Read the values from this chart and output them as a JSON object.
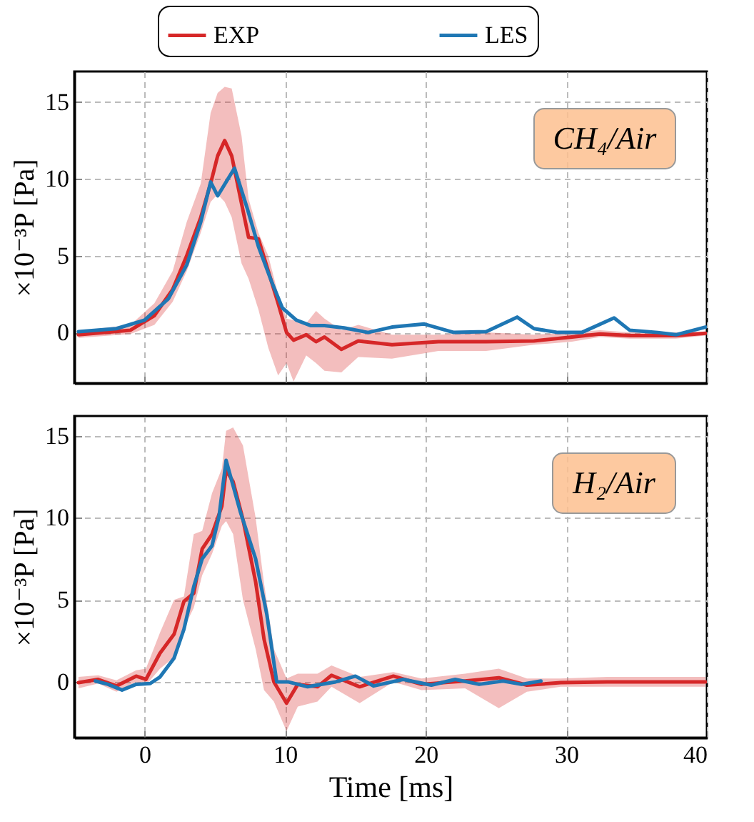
{
  "chart_data": [
    {
      "type": "line",
      "ylabel": "×10⁻³P [Pa]",
      "annotations": [
        "CH₄/Air"
      ],
      "xlim": [
        -5,
        40
      ],
      "xticks": [
        0,
        10,
        20,
        30,
        40
      ],
      "ylim": [
        -3.3,
        17
      ],
      "yticks": [
        0,
        5,
        10,
        15
      ],
      "grid": true,
      "legend": "top",
      "tick_labels": "y",
      "series": [
        {
          "name": "EXP",
          "color": "#d62728",
          "x": [
            -4.7,
            -1,
            0.7,
            2,
            3,
            4,
            4.7,
            5.2,
            5.7,
            6.2,
            6.9,
            7.4,
            8.1,
            8.8,
            9.5,
            10.1,
            10.6,
            11.5,
            12.2,
            12.8,
            14,
            15.2,
            17.6,
            20.9,
            24.3,
            27.7,
            30.4,
            32.4,
            34.5,
            37.8,
            39.9
          ],
          "values": [
            -0.15,
            0.15,
            1.1,
            2.8,
            5,
            7.5,
            9.7,
            11.5,
            12.5,
            11.5,
            8.4,
            6.2,
            6.1,
            4,
            1.9,
            0,
            -0.5,
            -0.15,
            -0.6,
            -0.3,
            -1.1,
            -0.55,
            -0.8,
            -0.6,
            -0.6,
            -0.55,
            -0.3,
            -0.1,
            -0.2,
            -0.2,
            -0.05
          ],
          "upper": [
            0.1,
            0.5,
            1.9,
            4,
            7.2,
            9.7,
            14.3,
            15.6,
            16,
            15.9,
            12.8,
            8.7,
            6.5,
            5,
            2.5,
            0.9,
            0.8,
            0.6,
            1.4,
            0.9,
            0.15,
            0.5,
            -0.15,
            -0.15,
            0,
            -0.15,
            0,
            0.15,
            0,
            0,
            0.05
          ],
          "lower": [
            -0.35,
            -0.1,
            0.5,
            2,
            4,
            6.5,
            8.5,
            9,
            8.5,
            7.5,
            4.5,
            3.5,
            1.5,
            -1,
            -2.8,
            -2,
            -3.2,
            -1.5,
            -2,
            -2.5,
            -2.6,
            -1.6,
            -1.7,
            -1.2,
            -1.2,
            -0.8,
            -0.6,
            -0.3,
            -0.4,
            -0.4,
            -0.2
          ]
        },
        {
          "name": "LES",
          "color": "#1f77b4",
          "x": [
            -4.7,
            -2,
            0,
            1.7,
            3,
            4,
            4.7,
            5.2,
            6.4,
            7.3,
            8.1,
            9,
            9.8,
            10.8,
            11.8,
            12.8,
            14.2,
            15.9,
            17.6,
            19.9,
            22,
            24.3,
            26.5,
            27.7,
            29.4,
            31.1,
            33.4,
            34.5,
            36.5,
            37.8,
            39.9
          ],
          "values": [
            0.05,
            0.25,
            0.8,
            2.2,
            4.4,
            7.2,
            9.8,
            8.9,
            10.7,
            8.1,
            5.6,
            3.4,
            1.6,
            0.8,
            0.45,
            0.45,
            0.3,
            0,
            0.35,
            0.55,
            0,
            0.05,
            1,
            0.25,
            0,
            0,
            0.95,
            0.15,
            0,
            -0.15,
            0.35
          ]
        }
      ]
    },
    {
      "type": "line",
      "xlabel": "Time [ms]",
      "ylabel": "×10⁻³P [Pa]",
      "annotations": [
        "H₂/Air"
      ],
      "xlim": [
        -5,
        40
      ],
      "xticks": [
        0,
        10,
        20,
        30,
        40
      ],
      "ylim": [
        -3.4,
        16.2
      ],
      "yticks": [
        0,
        5,
        10,
        15
      ],
      "grid": true,
      "series": [
        {
          "color": "#d62728",
          "x": [
            -4.7,
            -3.3,
            -2,
            -0.6,
            0.1,
            1.1,
            2.1,
            2.8,
            3.5,
            4.1,
            4.8,
            5.5,
            5.8,
            6.3,
            7,
            7.9,
            8.5,
            9.2,
            10.1,
            10.9,
            12.3,
            13.3,
            15.3,
            17.7,
            19.7,
            22.8,
            25.2,
            27.2,
            29.6,
            32.9,
            36.3,
            39.9
          ],
          "values": [
            -0.05,
            0.15,
            -0.25,
            0.35,
            0.15,
            1.75,
            2.9,
            4.9,
            5.4,
            8.1,
            9,
            10.7,
            12.9,
            12.2,
            9.9,
            6.1,
            2.6,
            0,
            -1.3,
            -0.15,
            -0.3,
            0.4,
            -0.3,
            0.35,
            -0.15,
            0.05,
            0.25,
            -0.2,
            -0.05,
            0,
            0,
            0
          ],
          "upper": [
            0.3,
            0.4,
            0.1,
            0.7,
            0.8,
            3,
            5,
            5.2,
            9,
            9.2,
            11.5,
            13,
            15.3,
            15.5,
            14.4,
            10,
            6,
            2,
            0.2,
            0.5,
            0.5,
            1,
            0.3,
            0.6,
            0.2,
            0.5,
            0.8,
            0.2,
            0.2,
            0.3,
            0.3,
            0.3
          ],
          "lower": [
            -0.4,
            -0.1,
            -0.6,
            0,
            -0.2,
            0.8,
            1.5,
            3.3,
            4.5,
            6.5,
            7.8,
            9.5,
            9.8,
            9,
            5,
            2,
            -0.5,
            -1.2,
            -3,
            -1.5,
            -1.2,
            -0.3,
            -1.3,
            0,
            -0.5,
            -0.4,
            -1.6,
            -0.6,
            -0.3,
            -0.3,
            -0.3,
            -0.3
          ]
        },
        {
          "color": "#1f77b4",
          "x": [
            -3.5,
            -2.6,
            -1.6,
            -0.6,
            0.4,
            1.1,
            2.1,
            2.8,
            3.5,
            4.1,
            4.8,
            5.3,
            5.8,
            6.8,
            7.9,
            8.7,
            9.4,
            10.2,
            11.6,
            13.6,
            15,
            16.3,
            18.4,
            20.4,
            22.1,
            23.8,
            25.5,
            26.8,
            28.2
          ],
          "values": [
            0.05,
            -0.15,
            -0.5,
            -0.15,
            -0.1,
            0.3,
            1.45,
            3.2,
            5.8,
            7.5,
            8.3,
            10.1,
            13.5,
            10.4,
            7.5,
            4.1,
            0,
            0,
            -0.3,
            0,
            0.35,
            -0.25,
            0.15,
            -0.2,
            0.15,
            -0.15,
            0.05,
            -0.15,
            0.05
          ]
        }
      ]
    }
  ]
}
